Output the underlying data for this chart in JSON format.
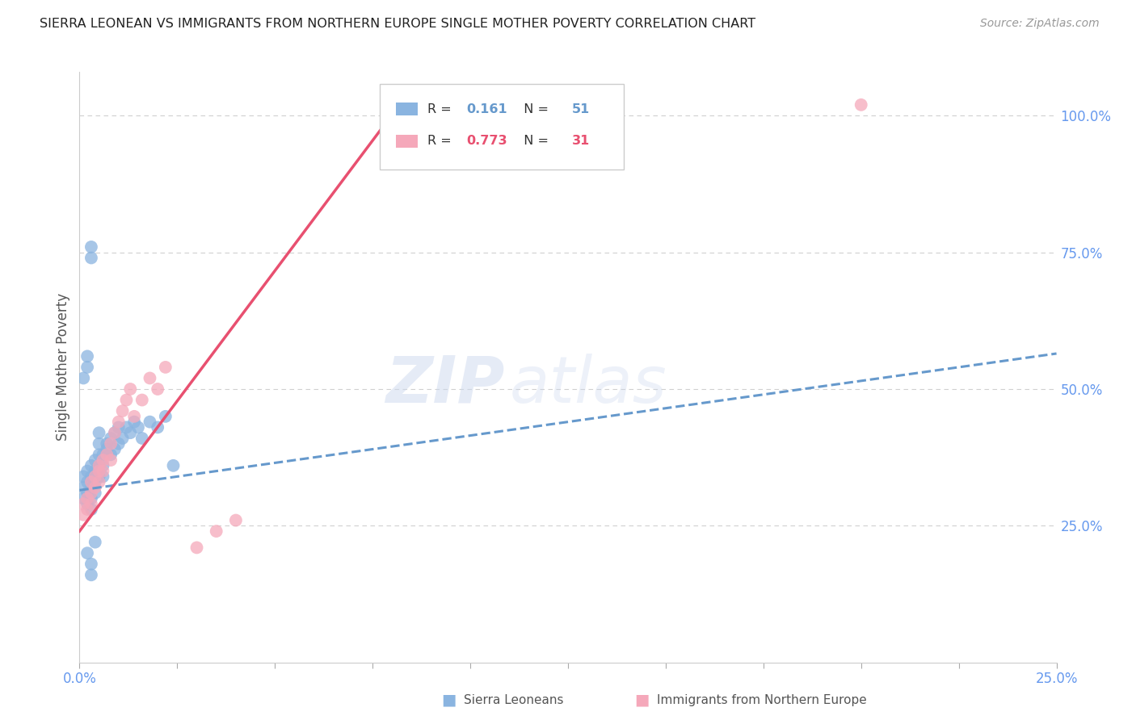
{
  "title": "SIERRA LEONEAN VS IMMIGRANTS FROM NORTHERN EUROPE SINGLE MOTHER POVERTY CORRELATION CHART",
  "source": "Source: ZipAtlas.com",
  "ylabel": "Single Mother Poverty",
  "watermark_zip": "ZIP",
  "watermark_atlas": "atlas",
  "blue_label": "Sierra Leoneans",
  "pink_label": "Immigrants from Northern Europe",
  "blue_R": 0.161,
  "blue_N": 51,
  "pink_R": 0.773,
  "pink_N": 31,
  "xlim": [
    0.0,
    0.25
  ],
  "ylim": [
    0.0,
    1.08
  ],
  "xticks": [
    0.0,
    0.025,
    0.05,
    0.075,
    0.1,
    0.125,
    0.15,
    0.175,
    0.2,
    0.225,
    0.25
  ],
  "xtick_labels_show": {
    "0.0": "0.0%",
    "0.25": "25.0%"
  },
  "yticks_right": [
    0.25,
    0.5,
    0.75,
    1.0
  ],
  "ytick_labels_right": [
    "25.0%",
    "50.0%",
    "75.0%",
    "100.0%"
  ],
  "blue_color": "#8ab4e0",
  "pink_color": "#f5a8ba",
  "blue_line_color": "#6699cc",
  "pink_line_color": "#e85070",
  "grid_color": "#d0d0d0",
  "title_color": "#222222",
  "axis_label_color": "#6699ee",
  "figsize": [
    14.06,
    8.92
  ],
  "dpi": 100,
  "blue_x": [
    0.001,
    0.001,
    0.001,
    0.002,
    0.002,
    0.002,
    0.002,
    0.003,
    0.003,
    0.003,
    0.003,
    0.003,
    0.004,
    0.004,
    0.004,
    0.004,
    0.005,
    0.005,
    0.005,
    0.005,
    0.005,
    0.006,
    0.006,
    0.006,
    0.007,
    0.007,
    0.008,
    0.008,
    0.009,
    0.009,
    0.01,
    0.01,
    0.011,
    0.012,
    0.013,
    0.014,
    0.015,
    0.016,
    0.018,
    0.02,
    0.022,
    0.024,
    0.001,
    0.002,
    0.002,
    0.003,
    0.003,
    0.004,
    0.002,
    0.003,
    0.003
  ],
  "blue_y": [
    0.34,
    0.32,
    0.3,
    0.35,
    0.33,
    0.31,
    0.29,
    0.36,
    0.34,
    0.32,
    0.3,
    0.28,
    0.37,
    0.35,
    0.33,
    0.31,
    0.38,
    0.36,
    0.34,
    0.4,
    0.42,
    0.38,
    0.36,
    0.34,
    0.4,
    0.39,
    0.41,
    0.38,
    0.42,
    0.39,
    0.43,
    0.4,
    0.41,
    0.43,
    0.42,
    0.44,
    0.43,
    0.41,
    0.44,
    0.43,
    0.45,
    0.36,
    0.52,
    0.54,
    0.56,
    0.74,
    0.76,
    0.22,
    0.2,
    0.18,
    0.16
  ],
  "pink_x": [
    0.001,
    0.001,
    0.002,
    0.002,
    0.003,
    0.003,
    0.003,
    0.004,
    0.004,
    0.005,
    0.005,
    0.005,
    0.006,
    0.006,
    0.007,
    0.008,
    0.008,
    0.009,
    0.01,
    0.011,
    0.012,
    0.013,
    0.014,
    0.016,
    0.018,
    0.02,
    0.022,
    0.03,
    0.035,
    0.04,
    0.2
  ],
  "pink_y": [
    0.29,
    0.27,
    0.3,
    0.28,
    0.31,
    0.29,
    0.33,
    0.32,
    0.34,
    0.35,
    0.33,
    0.36,
    0.37,
    0.35,
    0.38,
    0.4,
    0.37,
    0.42,
    0.44,
    0.46,
    0.48,
    0.5,
    0.45,
    0.48,
    0.52,
    0.5,
    0.54,
    0.21,
    0.24,
    0.26,
    1.02
  ],
  "blue_trend_x": [
    0.0,
    0.25
  ],
  "blue_trend_y": [
    0.315,
    0.565
  ],
  "pink_trend_x": [
    0.0,
    0.085
  ],
  "pink_trend_y": [
    0.24,
    1.05
  ]
}
